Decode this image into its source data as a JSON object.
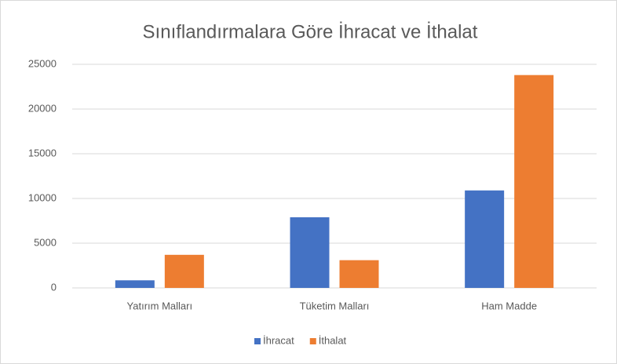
{
  "chart_data": {
    "type": "bar",
    "title": "Sınıflandırmalara Göre İhracat ve İthalat",
    "categories": [
      "Yatırım Malları",
      "Tüketim Malları",
      "Ham Madde"
    ],
    "series": [
      {
        "name": "İhracat",
        "color": "#4472c4",
        "values": [
          850,
          7900,
          10900
        ]
      },
      {
        "name": "İthalat",
        "color": "#ed7d31",
        "values": [
          3700,
          3100,
          23800
        ]
      }
    ],
    "ylim": [
      0,
      25000
    ],
    "yticks": [
      0,
      5000,
      10000,
      15000,
      20000,
      25000
    ],
    "grid": true,
    "legend": "bottom"
  }
}
